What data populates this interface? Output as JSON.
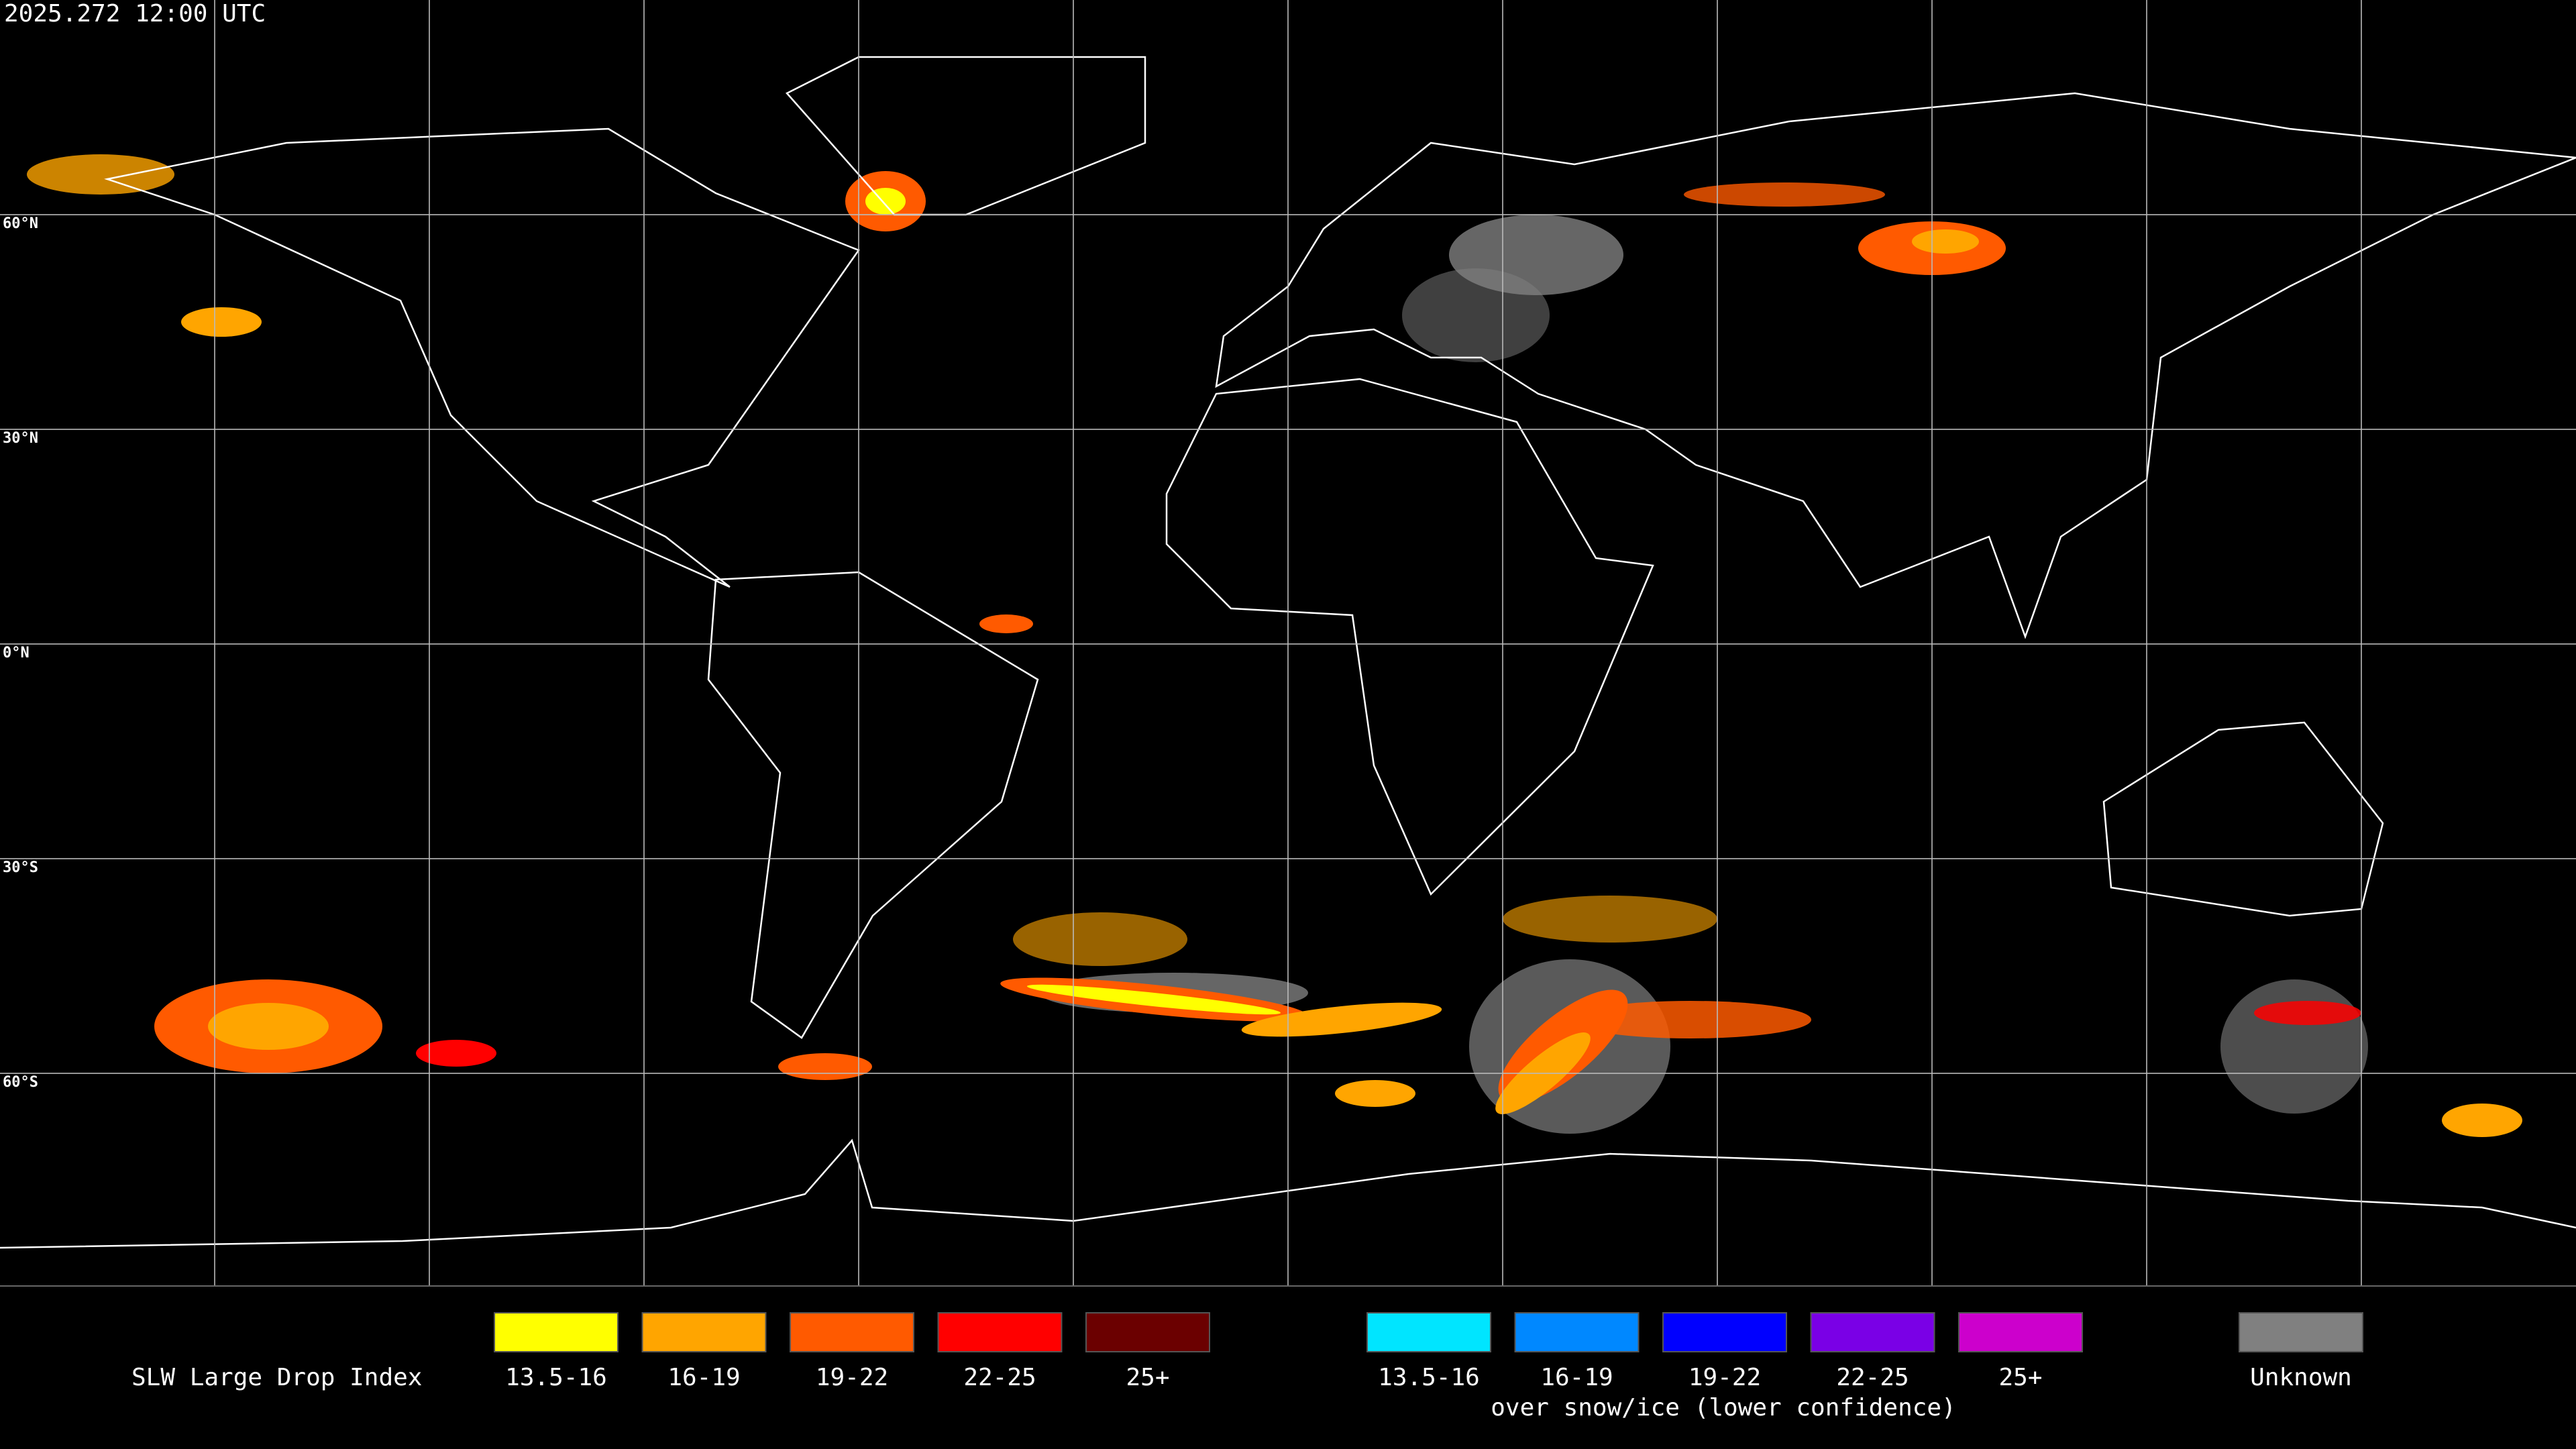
{
  "header": {
    "timestamp": "2025.272 12:00 UTC"
  },
  "grid": {
    "lat_labels": [
      "60°N",
      "30°N",
      "0°N",
      "30°S",
      "60°S"
    ]
  },
  "legend": {
    "title": "SLW Large Drop Index",
    "items": [
      {
        "label": "13.5-16",
        "color": "#ffff00"
      },
      {
        "label": "16-19",
        "color": "#ffa500"
      },
      {
        "label": "19-22",
        "color": "#ff5a00"
      },
      {
        "label": "22-25",
        "color": "#ff0000"
      },
      {
        "label": "25+",
        "color": "#6b0000"
      }
    ],
    "snow_items": [
      {
        "label": "13.5-16",
        "color": "#00e5ff"
      },
      {
        "label": "16-19",
        "color": "#0088ff"
      },
      {
        "label": "19-22",
        "color": "#0000ff"
      },
      {
        "label": "22-25",
        "color": "#7a00e6"
      },
      {
        "label": "25+",
        "color": "#cc00cc"
      }
    ],
    "snow_caption": "over snow/ice (lower confidence)",
    "unknown": {
      "label": "Unknown",
      "color": "#808080"
    }
  }
}
